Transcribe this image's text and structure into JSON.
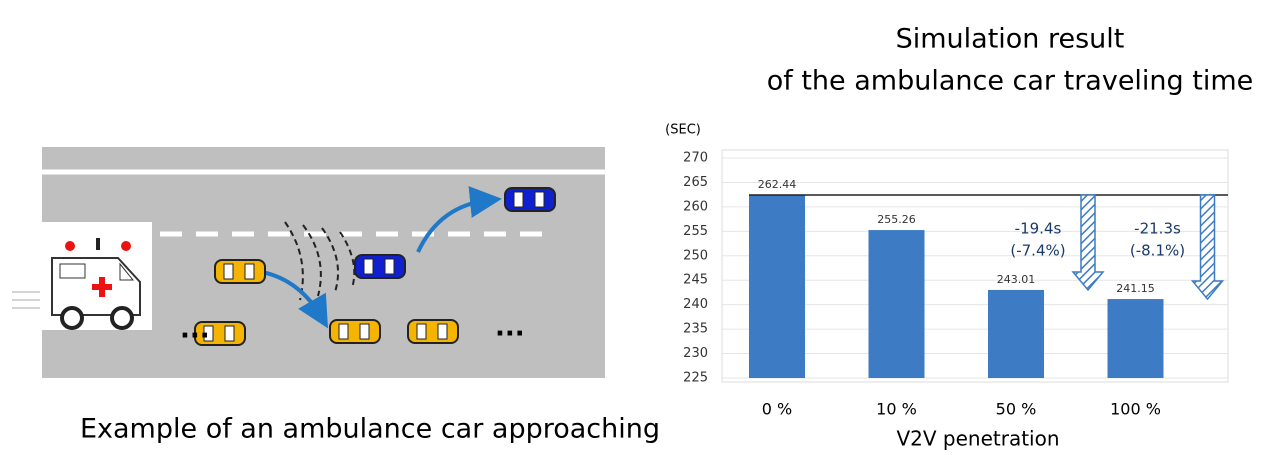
{
  "diagram": {
    "caption": "Example of an ambulance car approaching",
    "ellipses": [
      "...",
      "..."
    ]
  },
  "chart_data": {
    "type": "bar",
    "title": "Simulation result",
    "subtitle": "of the ambulance car traveling time",
    "y_unit": "(SEC)",
    "x_label": "V2V penetration",
    "categories": [
      "0 %",
      "10 %",
      "50 %",
      "100 %"
    ],
    "values": [
      262.44,
      255.26,
      243.01,
      241.15
    ],
    "value_labels": [
      "262.44",
      "255.26",
      "243.01",
      "241.15"
    ],
    "color": "#3d7cc4",
    "ylim": [
      225,
      270
    ],
    "yticks": [
      225,
      230,
      235,
      240,
      245,
      250,
      255,
      260,
      265,
      270
    ],
    "grid": true,
    "annotations": [
      {
        "target": 2,
        "lines": [
          "-19.4s",
          "(-7.4%)"
        ]
      },
      {
        "target": 3,
        "lines": [
          "-21.3s",
          "(-8.1%)"
        ]
      }
    ]
  }
}
